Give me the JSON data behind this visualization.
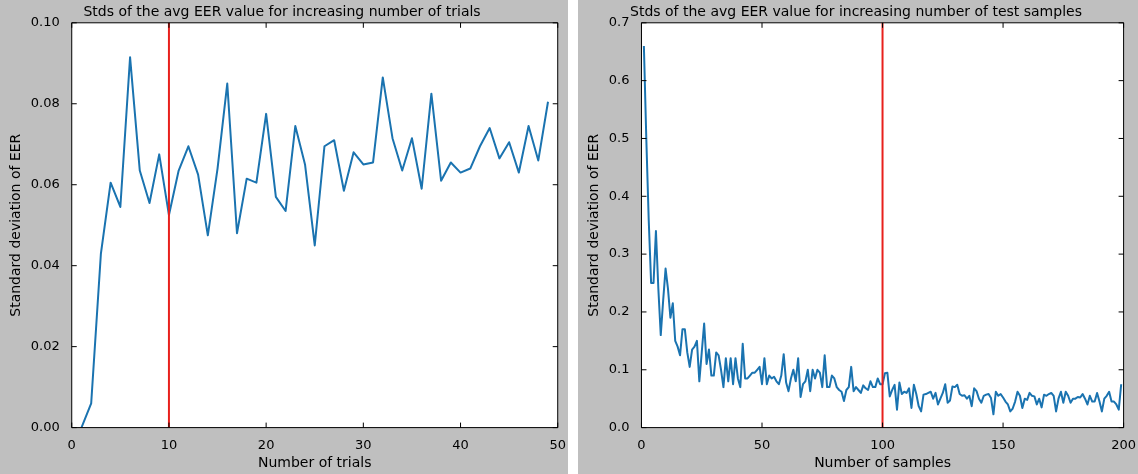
{
  "chart_data": [
    {
      "type": "line",
      "title": "Stds of the avg EER value for increasing number of trials",
      "xlabel": "Number of trials",
      "ylabel": "Standard deviation of EER",
      "xlim": [
        0,
        50
      ],
      "xticks": [
        0,
        10,
        20,
        30,
        40,
        50
      ],
      "ylim": [
        0,
        0.1
      ],
      "yticks": [
        {
          "value": 0,
          "label": "0.00"
        },
        {
          "value": 0.02,
          "label": "0.02"
        },
        {
          "value": 0.04,
          "label": "0.04"
        },
        {
          "value": 0.06,
          "label": "0.06"
        },
        {
          "value": 0.08,
          "label": "0.08"
        },
        {
          "value": 0.1,
          "label": "0.10"
        }
      ],
      "ref_lines": [
        {
          "axis": "x",
          "value": 10,
          "color": "#e8201c"
        }
      ],
      "series": [
        {
          "color": "#1a73b0",
          "x": [
            1,
            2,
            3,
            4,
            5,
            6,
            7,
            8,
            9,
            10,
            11,
            12,
            13,
            14,
            15,
            16,
            17,
            18,
            19,
            20,
            21,
            22,
            23,
            24,
            25,
            26,
            27,
            28,
            29,
            30,
            31,
            32,
            33,
            34,
            35,
            36,
            37,
            38,
            39,
            40,
            41,
            42,
            43,
            44,
            45,
            46,
            47,
            48,
            49
          ],
          "values": [
            0.0,
            0.006,
            0.043,
            0.0605,
            0.0545,
            0.0915,
            0.0635,
            0.0555,
            0.0675,
            0.0525,
            0.0635,
            0.0695,
            0.0625,
            0.0475,
            0.064,
            0.085,
            0.048,
            0.0615,
            0.0605,
            0.0775,
            0.057,
            0.0535,
            0.0745,
            0.065,
            0.045,
            0.0695,
            0.071,
            0.0585,
            0.068,
            0.065,
            0.0655,
            0.0865,
            0.0715,
            0.0635,
            0.0715,
            0.059,
            0.0825,
            0.061,
            0.0655,
            0.063,
            0.064,
            0.0695,
            0.074,
            0.0665,
            0.0705,
            0.063,
            0.0745,
            0.066,
            0.0805
          ]
        }
      ]
    },
    {
      "type": "line",
      "title": "Stds of the avg EER value for increasing number of test samples",
      "xlabel": "Number of samples",
      "ylabel": "Standard deviation of EER",
      "xlim": [
        0,
        200
      ],
      "xticks": [
        0,
        50,
        100,
        150,
        200
      ],
      "ylim": [
        0,
        0.7
      ],
      "yticks": [
        {
          "value": 0,
          "label": "0.0"
        },
        {
          "value": 0.1,
          "label": "0.1"
        },
        {
          "value": 0.2,
          "label": "0.2"
        },
        {
          "value": 0.3,
          "label": "0.3"
        },
        {
          "value": 0.4,
          "label": "0.4"
        },
        {
          "value": 0.5,
          "label": "0.5"
        },
        {
          "value": 0.6,
          "label": "0.6"
        },
        {
          "value": 0.7,
          "label": "0.7"
        }
      ],
      "ref_lines": [
        {
          "axis": "x",
          "value": 100,
          "color": "#e8201c"
        }
      ],
      "series": [
        {
          "color": "#1a73b0",
          "x": [
            1,
            2,
            3,
            4,
            5,
            6,
            7,
            8,
            9,
            10,
            11,
            12,
            13,
            14,
            15,
            16,
            17,
            18,
            19,
            20,
            21,
            22,
            23,
            24,
            25,
            26,
            27,
            28,
            29,
            30,
            31,
            32,
            33,
            34,
            35,
            36,
            37,
            38,
            39,
            40,
            41,
            42,
            43,
            44,
            45,
            46,
            47,
            48,
            49,
            50,
            51,
            52,
            53,
            54,
            55,
            56,
            57,
            58,
            59,
            60,
            61,
            62,
            63,
            64,
            65,
            66,
            67,
            68,
            69,
            70,
            71,
            72,
            73,
            74,
            75,
            76,
            77,
            78,
            79,
            80,
            81,
            82,
            83,
            84,
            85,
            86,
            87,
            88,
            89,
            90,
            91,
            92,
            93,
            94,
            95,
            96,
            97,
            98,
            99,
            100,
            101,
            102,
            103,
            104,
            105,
            106,
            107,
            108,
            109,
            110,
            111,
            112,
            113,
            114,
            115,
            116,
            117,
            118,
            119,
            120,
            121,
            122,
            123,
            124,
            125,
            126,
            127,
            128,
            129,
            130,
            131,
            132,
            133,
            134,
            135,
            136,
            137,
            138,
            139,
            140,
            141,
            142,
            143,
            144,
            145,
            146,
            147,
            148,
            149,
            150,
            151,
            152,
            153,
            154,
            155,
            156,
            157,
            158,
            159,
            160,
            161,
            162,
            163,
            164,
            165,
            166,
            167,
            168,
            169,
            170,
            171,
            172,
            173,
            174,
            175,
            176,
            177,
            178,
            179,
            180,
            181,
            182,
            183,
            184,
            185,
            186,
            187,
            188,
            189,
            190,
            191,
            192,
            193,
            194,
            195,
            196,
            197,
            198,
            199
          ],
          "values": [
            0.66,
            0.5,
            0.36,
            0.25,
            0.25,
            0.34,
            0.24,
            0.16,
            0.22,
            0.275,
            0.24,
            0.19,
            0.215,
            0.15,
            0.14,
            0.125,
            0.17,
            0.17,
            0.13,
            0.105,
            0.135,
            0.14,
            0.15,
            0.08,
            0.13,
            0.18,
            0.11,
            0.135,
            0.09,
            0.09,
            0.13,
            0.125,
            0.1,
            0.07,
            0.12,
            0.08,
            0.12,
            0.075,
            0.12,
            0.085,
            0.07,
            0.145,
            0.085,
            0.085,
            0.09,
            0.095,
            0.095,
            0.1,
            0.105,
            0.075,
            0.12,
            0.075,
            0.09,
            0.085,
            0.088,
            0.08,
            0.075,
            0.09,
            0.127,
            0.078,
            0.063,
            0.085,
            0.1,
            0.08,
            0.12,
            0.053,
            0.075,
            0.08,
            0.1,
            0.063,
            0.1,
            0.085,
            0.1,
            0.095,
            0.07,
            0.125,
            0.07,
            0.07,
            0.09,
            0.085,
            0.07,
            0.065,
            0.062,
            0.046,
            0.065,
            0.07,
            0.105,
            0.063,
            0.07,
            0.065,
            0.06,
            0.073,
            0.068,
            0.065,
            0.08,
            0.07,
            0.07,
            0.085,
            0.075,
            0.075,
            0.094,
            0.095,
            0.054,
            0.065,
            0.074,
            0.031,
            0.078,
            0.058,
            0.062,
            0.06,
            0.068,
            0.034,
            0.074,
            0.058,
            0.037,
            0.028,
            0.057,
            0.058,
            0.06,
            0.062,
            0.05,
            0.06,
            0.04,
            0.05,
            0.06,
            0.075,
            0.043,
            0.047,
            0.071,
            0.07,
            0.074,
            0.058,
            0.055,
            0.056,
            0.05,
            0.055,
            0.037,
            0.068,
            0.063,
            0.05,
            0.043,
            0.055,
            0.057,
            0.058,
            0.051,
            0.023,
            0.062,
            0.055,
            0.058,
            0.052,
            0.045,
            0.04,
            0.028,
            0.033,
            0.045,
            0.062,
            0.055,
            0.034,
            0.05,
            0.048,
            0.06,
            0.055,
            0.054,
            0.04,
            0.05,
            0.035,
            0.057,
            0.055,
            0.058,
            0.06,
            0.055,
            0.028,
            0.05,
            0.062,
            0.043,
            0.062,
            0.055,
            0.043,
            0.05,
            0.05,
            0.053,
            0.052,
            0.058,
            0.05,
            0.04,
            0.055,
            0.045,
            0.045,
            0.06,
            0.045,
            0.028,
            0.05,
            0.055,
            0.062,
            0.045,
            0.045,
            0.04,
            0.031,
            0.075
          ]
        }
      ]
    }
  ]
}
